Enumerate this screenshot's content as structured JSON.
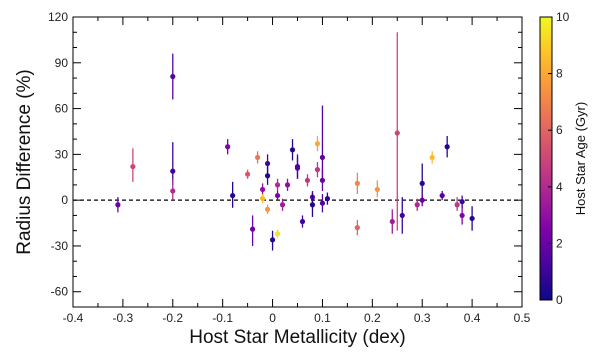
{
  "chart_data": {
    "type": "scatter",
    "xlabel": "Host Star Metallicity (dex)",
    "ylabel": "Radius Difference (%)",
    "xlim": [
      -0.4,
      0.5
    ],
    "ylim": [
      -70,
      120
    ],
    "xticks": [
      "-0.4",
      "-0.3",
      "-0.2",
      "-0.1",
      "0",
      "0.1",
      "0.2",
      "0.3",
      "0.4",
      "0.5"
    ],
    "xtick_values": [
      -0.4,
      -0.3,
      -0.2,
      -0.1,
      0,
      0.1,
      0.2,
      0.3,
      0.4,
      0.5
    ],
    "yticks": [
      "-60",
      "-30",
      "0",
      "30",
      "60",
      "90",
      "120"
    ],
    "ytick_values": [
      -60,
      -30,
      0,
      30,
      60,
      90,
      120
    ],
    "reference_line": {
      "y": 0,
      "style": "dashed"
    },
    "grid": false,
    "colorbar": {
      "label": "Host Star Age (Gyr)",
      "range": [
        0,
        10
      ],
      "ticks": [
        "0",
        "2",
        "4",
        "6",
        "8",
        "10"
      ],
      "tick_values": [
        0,
        2,
        4,
        6,
        8,
        10
      ],
      "colormap": "plasma",
      "placement": "right"
    },
    "points": [
      {
        "x": -0.31,
        "y": -3,
        "lo": -8,
        "hi": 2,
        "age": 2.0
      },
      {
        "x": -0.28,
        "y": 22,
        "lo": 12,
        "hi": 34,
        "age": 5.0
      },
      {
        "x": -0.2,
        "y": 81,
        "lo": 66,
        "hi": 96,
        "age": 1.5
      },
      {
        "x": -0.2,
        "y": 19,
        "lo": 10,
        "hi": 38,
        "age": 1.0
      },
      {
        "x": -0.2,
        "y": 6,
        "lo": 0,
        "hi": 14,
        "age": 4.0
      },
      {
        "x": -0.09,
        "y": 35,
        "lo": 30,
        "hi": 40,
        "age": 2.5
      },
      {
        "x": -0.08,
        "y": 3,
        "lo": -5,
        "hi": 12,
        "age": 0.5
      },
      {
        "x": -0.05,
        "y": 17,
        "lo": 14,
        "hi": 20,
        "age": 5.5
      },
      {
        "x": -0.04,
        "y": -19,
        "lo": -30,
        "hi": -10,
        "age": 2.0
      },
      {
        "x": -0.03,
        "y": 28,
        "lo": 24,
        "hi": 32,
        "age": 6.5
      },
      {
        "x": -0.02,
        "y": 7,
        "lo": 3,
        "hi": 11,
        "age": 3.0
      },
      {
        "x": -0.02,
        "y": 1,
        "lo": -2,
        "hi": 4,
        "age": 8.5
      },
      {
        "x": -0.01,
        "y": 24,
        "lo": 18,
        "hi": 30,
        "age": 1.0
      },
      {
        "x": -0.01,
        "y": 16,
        "lo": 10,
        "hi": 22,
        "age": 0.5
      },
      {
        "x": -0.01,
        "y": -6,
        "lo": -9,
        "hi": -3,
        "age": 7.5
      },
      {
        "x": 0.0,
        "y": -26,
        "lo": -33,
        "hi": -20,
        "age": 0.5
      },
      {
        "x": 0.01,
        "y": 10,
        "lo": 6,
        "hi": 14,
        "age": 4.0
      },
      {
        "x": 0.01,
        "y": 3,
        "lo": 0,
        "hi": 6,
        "age": 2.5
      },
      {
        "x": 0.01,
        "y": -22,
        "lo": -25,
        "hi": -19,
        "age": 9.5
      },
      {
        "x": 0.02,
        "y": -3,
        "lo": -7,
        "hi": 1,
        "age": 3.5
      },
      {
        "x": 0.03,
        "y": 10,
        "lo": 6,
        "hi": 14,
        "age": 3.0
      },
      {
        "x": 0.04,
        "y": 33,
        "lo": 26,
        "hi": 40,
        "age": 0.5
      },
      {
        "x": 0.05,
        "y": 22,
        "lo": 14,
        "hi": 30,
        "age": 1.0
      },
      {
        "x": 0.05,
        "y": 21,
        "lo": 14,
        "hi": 28,
        "age": 1.5
      },
      {
        "x": 0.06,
        "y": -14,
        "lo": -18,
        "hi": -10,
        "age": 1.0
      },
      {
        "x": 0.07,
        "y": 13,
        "lo": 9,
        "hi": 17,
        "age": 4.5
      },
      {
        "x": 0.08,
        "y": 2,
        "lo": -2,
        "hi": 6,
        "age": 2.0
      },
      {
        "x": 0.08,
        "y": -3,
        "lo": -11,
        "hi": 5,
        "age": 0.5
      },
      {
        "x": 0.09,
        "y": 37,
        "lo": 32,
        "hi": 42,
        "age": 8.0
      },
      {
        "x": 0.09,
        "y": 20,
        "lo": 15,
        "hi": 25,
        "age": 4.5
      },
      {
        "x": 0.1,
        "y": 28,
        "lo": 14,
        "hi": 62,
        "age": 1.5
      },
      {
        "x": 0.1,
        "y": 13,
        "lo": 6,
        "hi": 20,
        "age": 2.0
      },
      {
        "x": 0.11,
        "y": 1,
        "lo": -3,
        "hi": 5,
        "age": 0.5
      },
      {
        "x": 0.1,
        "y": -2,
        "lo": -8,
        "hi": 4,
        "age": 1.5
      },
      {
        "x": 0.17,
        "y": 11,
        "lo": 4,
        "hi": 18,
        "age": 7.0
      },
      {
        "x": 0.17,
        "y": -18,
        "lo": -23,
        "hi": -13,
        "age": 6.0
      },
      {
        "x": 0.21,
        "y": 7,
        "lo": 2,
        "hi": 13,
        "age": 7.5
      },
      {
        "x": 0.24,
        "y": -14,
        "lo": -22,
        "hi": -6,
        "age": 3.5
      },
      {
        "x": 0.25,
        "y": 44,
        "lo": -20,
        "hi": 110,
        "age": 5.0
      },
      {
        "x": 0.26,
        "y": -10,
        "lo": -22,
        "hi": 2,
        "age": 1.0
      },
      {
        "x": 0.29,
        "y": -3,
        "lo": -7,
        "hi": 1,
        "age": 4.0
      },
      {
        "x": 0.3,
        "y": 11,
        "lo": -2,
        "hi": 24,
        "age": 0.5
      },
      {
        "x": 0.3,
        "y": 0,
        "lo": -4,
        "hi": 4,
        "age": 2.0
      },
      {
        "x": 0.32,
        "y": 28,
        "lo": 24,
        "hi": 32,
        "age": 8.5
      },
      {
        "x": 0.34,
        "y": 3,
        "lo": 0,
        "hi": 6,
        "age": 1.5
      },
      {
        "x": 0.35,
        "y": 35,
        "lo": 28,
        "hi": 42,
        "age": 0.5
      },
      {
        "x": 0.37,
        "y": -3,
        "lo": -7,
        "hi": 2,
        "age": 4.5
      },
      {
        "x": 0.38,
        "y": -10,
        "lo": -16,
        "hi": -4,
        "age": 2.5
      },
      {
        "x": 0.38,
        "y": -1,
        "lo": -5,
        "hi": 3,
        "age": 1.0
      },
      {
        "x": 0.4,
        "y": -12,
        "lo": -20,
        "hi": -4,
        "age": 0.5
      }
    ]
  }
}
